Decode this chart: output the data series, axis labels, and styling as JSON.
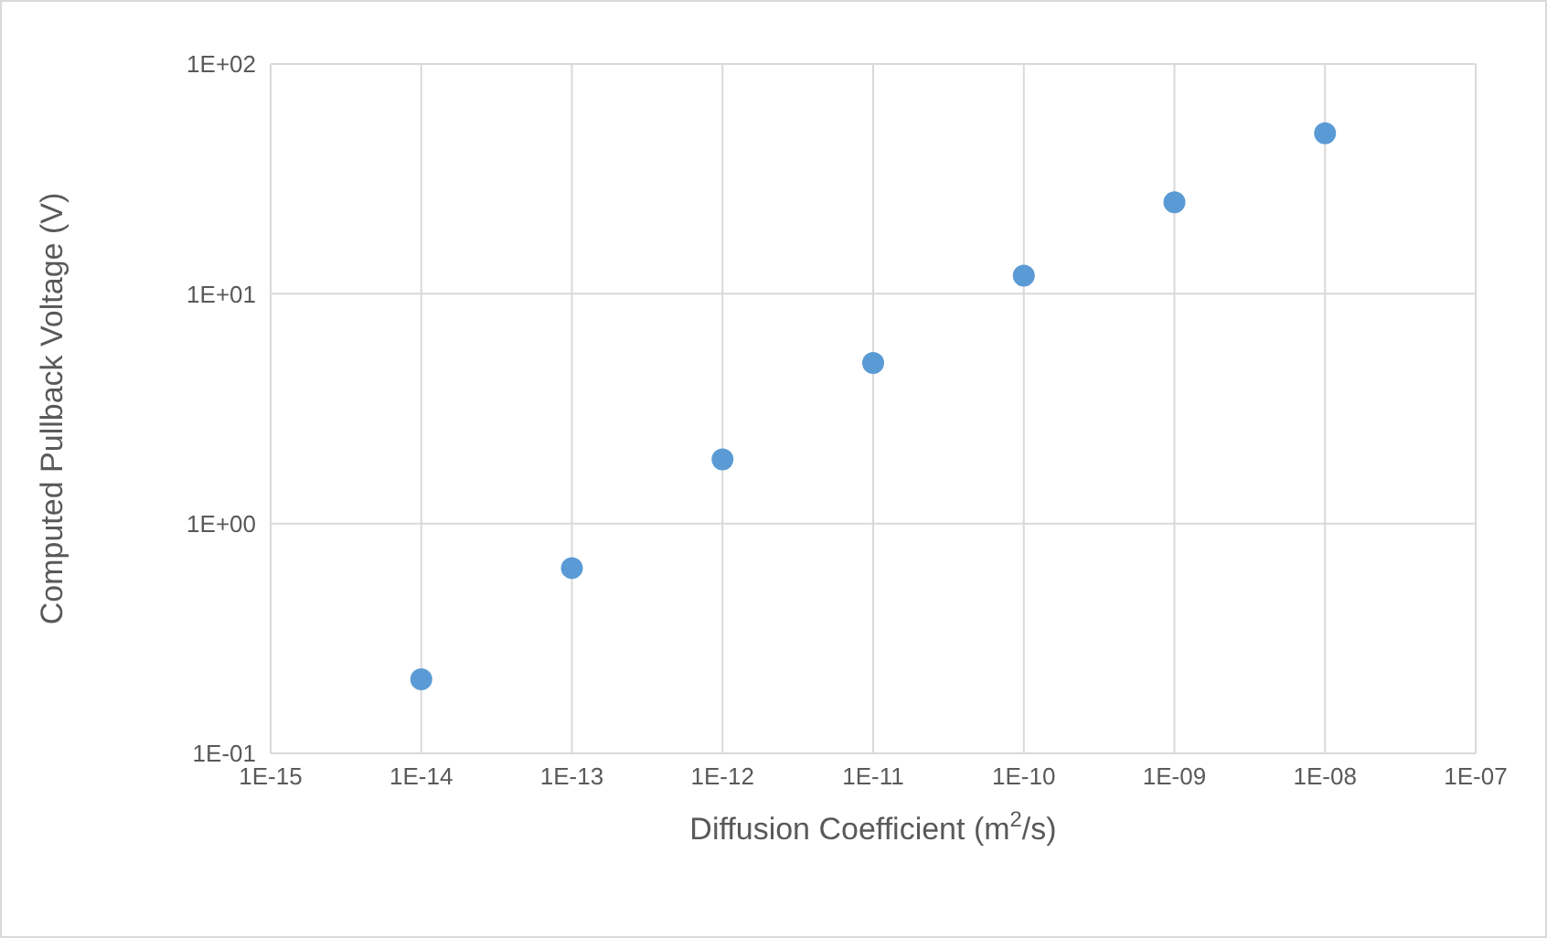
{
  "chart_data": {
    "type": "scatter",
    "xlabel": "Diffusion Coefficient (m$^{2}$/s)",
    "ylabel": "Computed Pullback Voltage (V)",
    "x": [
      1e-14,
      1e-13,
      1e-12,
      1e-11,
      1e-10,
      1e-09,
      1e-08
    ],
    "series": [
      {
        "color": "#5b9bd5",
        "values": [
          0.21,
          0.64,
          1.9,
          5,
          12,
          25,
          50
        ]
      }
    ],
    "log": "xy",
    "xlim": [
      1e-15,
      1e-07
    ],
    "xticks": [
      {
        "value": 1e-15,
        "label": "1E-15"
      },
      {
        "value": 1e-14,
        "label": "1E-14"
      },
      {
        "value": 1e-13,
        "label": "1E-13"
      },
      {
        "value": 1e-12,
        "label": "1E-12"
      },
      {
        "value": 1e-11,
        "label": "1E-11"
      },
      {
        "value": 1e-10,
        "label": "1E-10"
      },
      {
        "value": 1e-09,
        "label": "1E-09"
      },
      {
        "value": 1e-08,
        "label": "1E-08"
      },
      {
        "value": 1e-07,
        "label": "1E-07"
      }
    ],
    "ylim": [
      0.1,
      100
    ],
    "yticks": [
      {
        "value": 0.1,
        "label": "1E-01"
      },
      {
        "value": 1,
        "label": "1E+00"
      },
      {
        "value": 10,
        "label": "1E+01"
      },
      {
        "value": 100,
        "label": "1E+02"
      }
    ],
    "grid": true,
    "marker": "circle"
  }
}
